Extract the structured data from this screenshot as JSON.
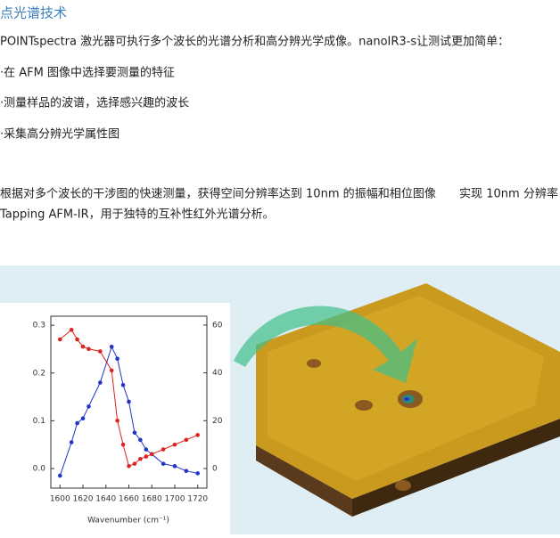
{
  "header": {
    "title": "点光谱技术"
  },
  "paragraphs": [
    "POINTspectra 激光器可执行多个波长的光谱分析和高分辨光学成像。nanoIR3-s让测试更加简单："
  ],
  "bullets": [
    "·在 AFM 图像中选择要测量的特征",
    "·测量样品的波谱，选择感兴趣的波长",
    "·采集高分辨光学属性图"
  ],
  "closing": [
    "根据对多个波长的干涉图的快速测量，获得空间分辨率达到 10nm 的振幅和相位图像　　实现 10nm 分辨率",
    "Tapping AFM-IR，用于独特的互补性红外光谱分析。"
  ],
  "chart_data": {
    "type": "line",
    "x_label": "Wavenumber (cm⁻¹)",
    "x": [
      1600,
      1610,
      1615,
      1620,
      1625,
      1635,
      1645,
      1650,
      1655,
      1660,
      1665,
      1670,
      1675,
      1680,
      1690,
      1700,
      1710,
      1720
    ],
    "series": [
      {
        "color": "#2233cc",
        "values": [
          -0.015,
          0.055,
          0.095,
          0.105,
          0.13,
          0.18,
          0.255,
          0.23,
          0.175,
          0.14,
          0.075,
          0.06,
          0.04,
          0.03,
          0.01,
          0.005,
          -0.005,
          -0.01
        ]
      },
      {
        "color": "#dd2222",
        "axis": "y2",
        "values": [
          54,
          58,
          54,
          51,
          50,
          49,
          41,
          20,
          10,
          1,
          2,
          4,
          5,
          6,
          8,
          10,
          12,
          14
        ]
      }
    ],
    "xlim": [
      1592,
      1728
    ],
    "xticks": [
      1600,
      1620,
      1640,
      1660,
      1680,
      1700,
      1720
    ],
    "ylim": [
      -0.041,
      0.319
    ],
    "yticks": [
      {
        "value": 0,
        "label": "0.0"
      },
      0.1,
      0.2,
      0.3
    ],
    "y2lim": [
      -8.2,
      63.7
    ],
    "y2ticks": [
      0,
      20,
      40,
      60
    ]
  }
}
